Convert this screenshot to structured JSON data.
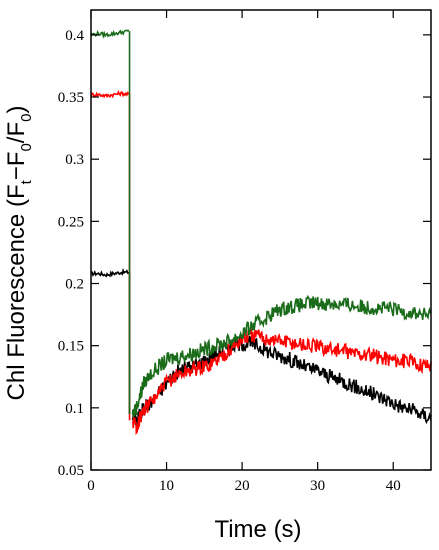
{
  "chart_data": {
    "type": "line",
    "title": "",
    "xlabel": "Time (s)",
    "ylabel": "Chl Fluorescence (F t−F 0/F 0)",
    "ylabel_parts": {
      "main": "Chl Fluorescence (F",
      "sub_t": "t",
      "minus": "−F",
      "sub_0a": "0",
      "slash": "/F",
      "sub_0b": "0",
      "close": ")"
    },
    "xlim": [
      0,
      45
    ],
    "ylim": [
      0.05,
      0.42
    ],
    "x_ticks": [
      0,
      10,
      20,
      30,
      40
    ],
    "x_tick_labels": [
      "0",
      "10",
      "20",
      "30",
      "40"
    ],
    "y_ticks": [
      0.05,
      0.1,
      0.15,
      0.2,
      0.25,
      0.3,
      0.35,
      0.4
    ],
    "y_tick_labels": [
      "0.05",
      "0.1",
      "0.15",
      "0.2",
      "0.25",
      "0.3",
      "0.35",
      "0.4"
    ],
    "grid": false,
    "legend": false,
    "series": [
      {
        "color": "#000000",
        "pre_segment": {
          "x": [
            0,
            1,
            2,
            3,
            4,
            5
          ],
          "y": [
            0.208,
            0.208,
            0.207,
            0.208,
            0.209,
            0.209
          ]
        },
        "points": {
          "x": [
            5.2,
            5.5,
            6,
            6.5,
            7,
            8,
            9,
            10,
            11,
            12,
            13,
            14,
            15,
            16,
            17,
            18,
            19,
            20,
            21,
            22,
            23,
            24,
            25,
            26,
            27,
            28,
            29,
            30,
            31,
            32,
            33,
            34,
            35,
            36,
            37,
            38,
            39,
            40,
            41,
            42,
            43,
            44,
            45
          ],
          "y": [
            0.13,
            0.095,
            0.09,
            0.095,
            0.1,
            0.105,
            0.112,
            0.12,
            0.127,
            0.131,
            0.133,
            0.135,
            0.138,
            0.141,
            0.145,
            0.148,
            0.151,
            0.152,
            0.152,
            0.15,
            0.147,
            0.144,
            0.142,
            0.14,
            0.137,
            0.134,
            0.131,
            0.13,
            0.127,
            0.124,
            0.122,
            0.12,
            0.117,
            0.114,
            0.112,
            0.109,
            0.107,
            0.104,
            0.101,
            0.099,
            0.097,
            0.094,
            0.092
          ]
        }
      },
      {
        "color": "#ff0000",
        "pre_segment": {
          "x": [
            0,
            1,
            2,
            3,
            4,
            5
          ],
          "y": [
            0.352,
            0.352,
            0.351,
            0.352,
            0.353,
            0.352
          ]
        },
        "points": {
          "x": [
            5.2,
            5.5,
            6,
            6.5,
            7,
            8,
            9,
            10,
            11,
            12,
            13,
            14,
            15,
            16,
            17,
            18,
            19,
            20,
            21,
            22,
            23,
            24,
            25,
            26,
            27,
            28,
            29,
            30,
            31,
            32,
            33,
            34,
            35,
            36,
            37,
            38,
            39,
            40,
            41,
            42,
            43,
            44,
            45
          ],
          "y": [
            0.13,
            0.09,
            0.085,
            0.092,
            0.098,
            0.105,
            0.112,
            0.12,
            0.125,
            0.128,
            0.13,
            0.132,
            0.133,
            0.136,
            0.14,
            0.145,
            0.15,
            0.155,
            0.158,
            0.158,
            0.156,
            0.155,
            0.154,
            0.153,
            0.152,
            0.151,
            0.15,
            0.149,
            0.148,
            0.147,
            0.146,
            0.145,
            0.144,
            0.143,
            0.142,
            0.141,
            0.14,
            0.139,
            0.138,
            0.137,
            0.136,
            0.135,
            0.134
          ]
        }
      },
      {
        "color": "#1a6b1a",
        "pre_segment": {
          "x": [
            0,
            1,
            2,
            3,
            4,
            5
          ],
          "y": [
            0.4,
            0.401,
            0.4,
            0.401,
            0.402,
            0.403
          ]
        },
        "points": {
          "x": [
            5.2,
            5.5,
            6,
            6.5,
            7,
            8,
            9,
            10,
            11,
            12,
            13,
            14,
            15,
            16,
            17,
            18,
            19,
            20,
            21,
            22,
            23,
            24,
            25,
            26,
            27,
            28,
            29,
            30,
            31,
            32,
            33,
            34,
            35,
            36,
            37,
            38,
            39,
            40,
            41,
            42,
            43,
            44,
            45
          ],
          "y": [
            0.13,
            0.095,
            0.1,
            0.11,
            0.12,
            0.128,
            0.133,
            0.138,
            0.14,
            0.142,
            0.143,
            0.145,
            0.147,
            0.149,
            0.151,
            0.153,
            0.156,
            0.16,
            0.164,
            0.168,
            0.172,
            0.176,
            0.179,
            0.181,
            0.182,
            0.183,
            0.184,
            0.184,
            0.184,
            0.184,
            0.183,
            0.183,
            0.182,
            0.181,
            0.181,
            0.18,
            0.18,
            0.179,
            0.178,
            0.177,
            0.176,
            0.175,
            0.174
          ]
        }
      }
    ]
  }
}
